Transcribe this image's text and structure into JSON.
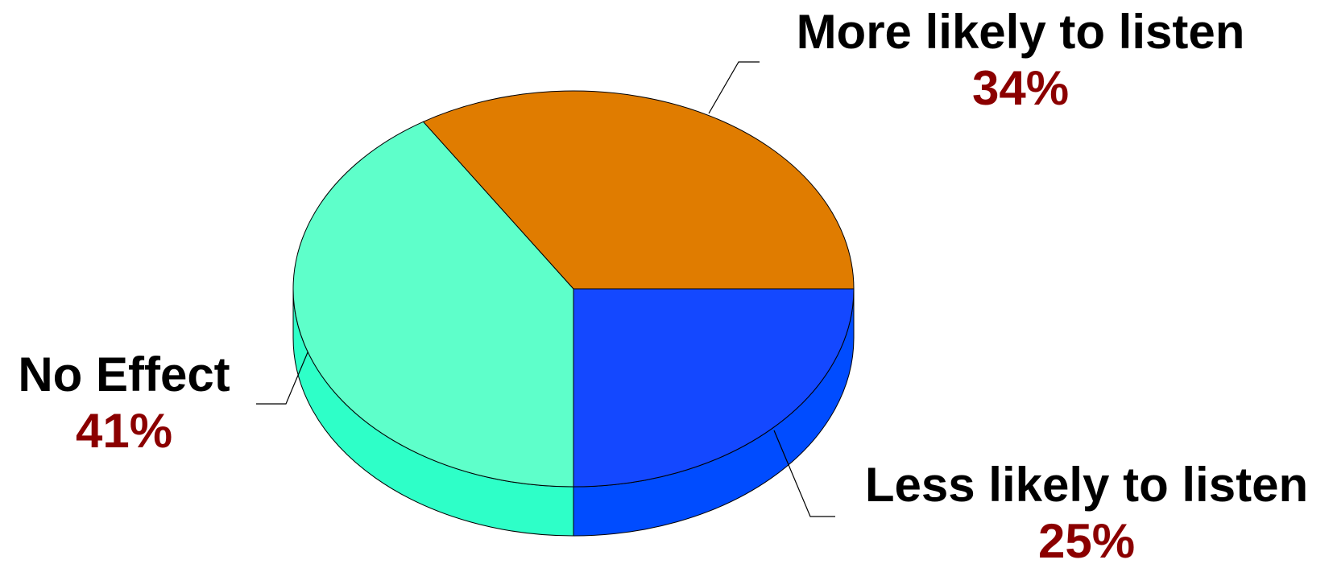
{
  "chart_data": {
    "type": "pie",
    "style": "3d",
    "slices": [
      {
        "label": "More likely to listen",
        "value": 34,
        "value_label": "34%",
        "color": "#E07C00",
        "side_color": "#C86E00"
      },
      {
        "label": "Less likely to listen",
        "value": 25,
        "value_label": "25%",
        "color": "#1448FF",
        "side_color": "#004CFF"
      },
      {
        "label": "No Effect",
        "value": 41,
        "value_label": "41%",
        "color": "#5EFFCA",
        "side_color": "#2EFFC8"
      }
    ],
    "label_name_color": "#000000",
    "value_label_color": "#8B0000",
    "legend": "none",
    "grid": false
  }
}
